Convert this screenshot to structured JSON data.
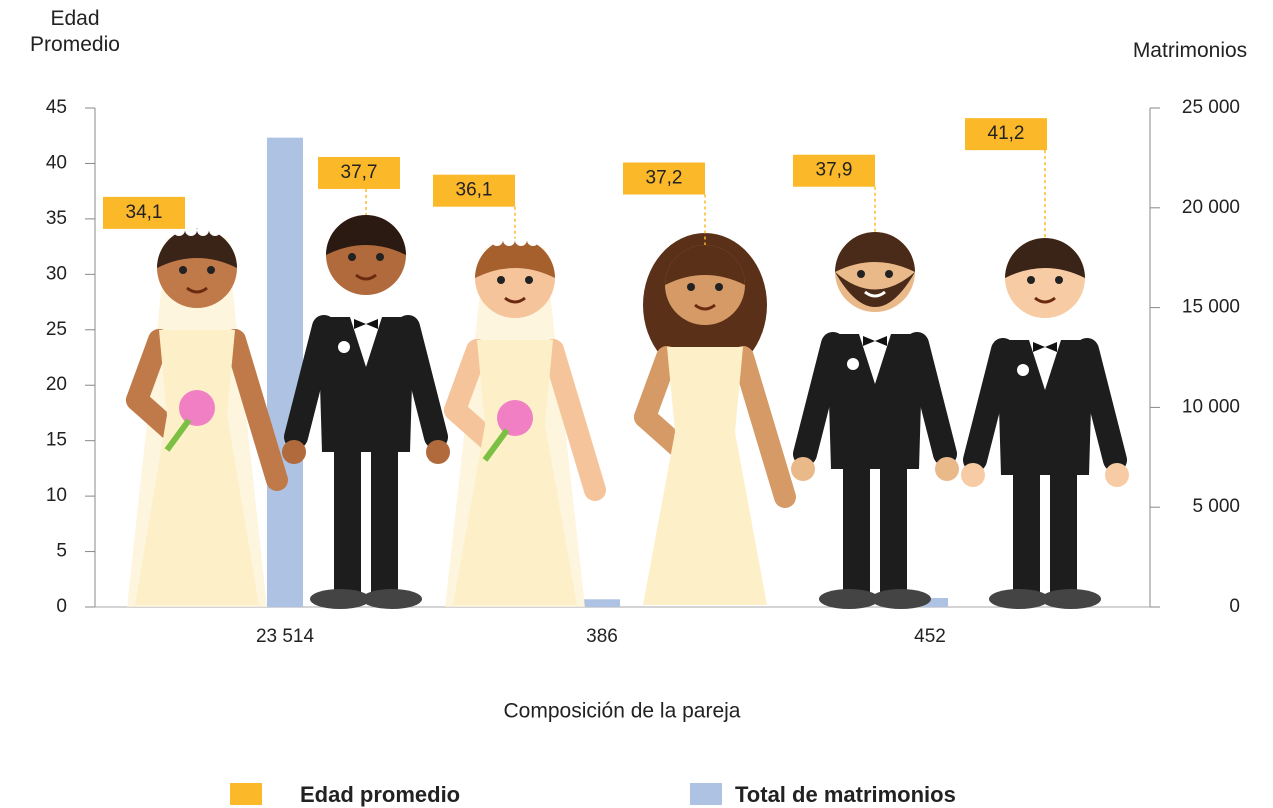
{
  "chart_data": {
    "type": "bar",
    "y_label": "Edad Promedio",
    "y2_label": "Matrimonios",
    "x_label": "Composición de la pareja",
    "ylim": [
      0,
      45
    ],
    "yticks": [
      0,
      5,
      10,
      15,
      20,
      25,
      30,
      35,
      40,
      45
    ],
    "y2lim": [
      0,
      25000
    ],
    "y2ticks": [
      0,
      {
        "value": 5000,
        "label": "5 000"
      },
      {
        "value": 10000,
        "label": "10 000"
      },
      {
        "value": 15000,
        "label": "15 000"
      },
      {
        "value": 20000,
        "label": "20 000"
      },
      {
        "value": 25000,
        "label": "25 000"
      }
    ],
    "series": [
      {
        "name": "Edad promedio",
        "color": "#fbb829",
        "values": [
          34.1,
          37.7,
          36.1,
          37.2,
          37.9,
          41.2
        ],
        "value_labels": [
          "34,1",
          "37,7",
          "36,1",
          "37,2",
          "37,9",
          "41,2"
        ]
      },
      {
        "name": "Total de matrimonios",
        "color": "#aec3e3",
        "axis": "y2",
        "values": [
          23514,
          386,
          452
        ],
        "value_labels": [
          "23 514",
          "386",
          "452"
        ]
      }
    ]
  }
}
